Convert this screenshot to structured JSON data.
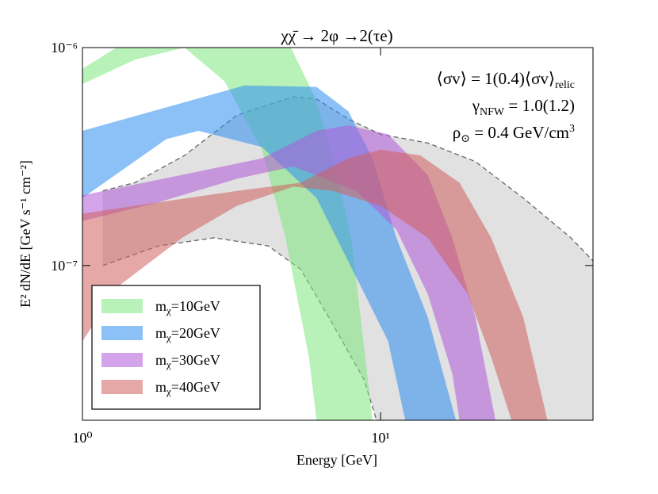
{
  "chart_data": {
    "type": "band",
    "title": "χχ̄ → 2φ →2(τe)",
    "x_label": "Energy [GeV]",
    "y_label": "E² dN/dE [GeV s⁻¹ cm⁻²]",
    "x_log": true,
    "y_log": true,
    "xlim": [
      1,
      51.6
    ],
    "ylim": [
      1.95e-08,
      1e-06
    ],
    "xticks": [
      {
        "value": 1,
        "label": "10⁰"
      },
      {
        "value": 10,
        "label": "10¹"
      }
    ],
    "yticks": [
      {
        "value": 1e-07,
        "label": "10⁻⁷"
      },
      {
        "value": 1e-06,
        "label": "10⁻⁶"
      }
    ],
    "annotations": [
      [
        "⟨σv⟩ =  1(0.4)⟨σv⟩",
        {
          "sub": "relic"
        }
      ],
      [
        "γ",
        {
          "sub": "NFW"
        },
        " = 1.0(1.2)"
      ],
      [
        "ρ",
        {
          "sub": "⊙"
        },
        " = 0.4 GeV/cm",
        {
          "sup": "3"
        }
      ]
    ],
    "legend_position": "lower left",
    "series": [
      {
        "color": "#c8c8c8",
        "dashed": true,
        "upper": {
          "x": [
            1.17,
            1.5,
            2.2,
            3.3,
            5.1,
            6.1,
            7.8,
            10,
            14.4,
            20.8,
            30.1,
            43.5,
            51.6
          ],
          "y": [
            2.2e-07,
            2.4e-07,
            3.2e-07,
            4.9e-07,
            5.95e-07,
            5.8e-07,
            4.7e-07,
            4e-07,
            3.65e-07,
            3e-07,
            2.04e-07,
            1.34e-07,
            1.05e-07
          ]
        },
        "lower": {
          "x": [
            1.17,
            1.8,
            2.76,
            4.2,
            5.4,
            6.9,
            8.8,
            9.7
          ],
          "y": [
            1e-07,
            1.23e-07,
            1.34e-07,
            1.23e-07,
            9.6e-08,
            5.4e-08,
            3e-08,
            1.95e-08
          ]
        }
      },
      {
        "name": "mχ=10GeV",
        "color": "#7ee87e",
        "upper": {
          "x": [
            1,
            1.3,
            2,
            3,
            4,
            5,
            6,
            7,
            8,
            9.4
          ],
          "y": [
            8e-07,
            1e-06,
            1.4e-06,
            1.6e-06,
            1.4e-06,
            1e-06,
            6e-07,
            3e-07,
            1.3e-07,
            1.95e-08
          ]
        },
        "lower": {
          "x": [
            1,
            1.5,
            2.2,
            3,
            4,
            4.8,
            5.75,
            6.1
          ],
          "y": [
            6.8e-07,
            8.8e-07,
            1e-06,
            7e-07,
            3.4e-07,
            1.34e-07,
            3.8e-08,
            1.95e-08
          ]
        }
      },
      {
        "name": "mχ=20GeV",
        "color": "#2e8ef0",
        "upper": {
          "x": [
            1,
            3.5,
            6.1,
            7.8,
            9.4,
            11.3,
            14.4,
            17.9
          ],
          "y": [
            4.15e-07,
            6.7e-07,
            6.6e-07,
            5.1e-07,
            3.1e-07,
            1.34e-07,
            5.8e-08,
            1.95e-08
          ]
        },
        "lower": {
          "x": [
            1,
            1.91,
            2.45,
            4,
            6.1,
            8.3,
            10.6,
            12.1
          ],
          "y": [
            2.04e-07,
            3.8e-07,
            4.15e-07,
            3.5e-07,
            2.04e-07,
            8.8e-08,
            4.5e-08,
            1.95e-08
          ]
        }
      },
      {
        "name": "mχ=30GeV",
        "color": "#b15ad8",
        "upper": {
          "x": [
            1,
            2.45,
            4,
            6.1,
            7.8,
            10.6,
            14.4,
            17.4,
            20.8,
            24.3
          ],
          "y": [
            2.1e-07,
            2.7e-07,
            3.1e-07,
            4.15e-07,
            4.4e-07,
            4e-07,
            2.6e-07,
            1.34e-07,
            5.8e-08,
            1.95e-08
          ]
        },
        "lower": {
          "x": [
            1,
            1.8,
            3.3,
            5.1,
            8.3,
            11.3,
            14.4,
            17.4,
            18.4
          ],
          "y": [
            1.6e-07,
            1.95e-07,
            2.5e-07,
            2.85e-07,
            2.2e-07,
            1.46e-07,
            7.4e-08,
            3.2e-08,
            1.95e-08
          ]
        }
      },
      {
        "name": "mχ=40GeV",
        "color": "#d0605f",
        "upper": {
          "x": [
            1,
            1.8,
            3.3,
            5.4,
            7.8,
            10,
            13.6,
            18.4,
            23.5,
            30.1,
            36.3
          ],
          "y": [
            1.73e-07,
            1.95e-07,
            2.2e-07,
            2.4e-07,
            3.1e-07,
            3.4e-07,
            3.2e-07,
            2.4e-07,
            1.34e-07,
            5.8e-08,
            1.95e-08
          ]
        },
        "lower": {
          "x": [
            1,
            1.33,
            2.16,
            3.3,
            5.1,
            6.9,
            10,
            14.4,
            19.6,
            23.5,
            27.5
          ],
          "y": [
            4.5e-08,
            8.1e-08,
            1.34e-07,
            1.88e-07,
            2.3e-07,
            2.2e-07,
            1.88e-07,
            1.34e-07,
            7.4e-08,
            3.8e-08,
            1.95e-08
          ]
        }
      }
    ]
  }
}
